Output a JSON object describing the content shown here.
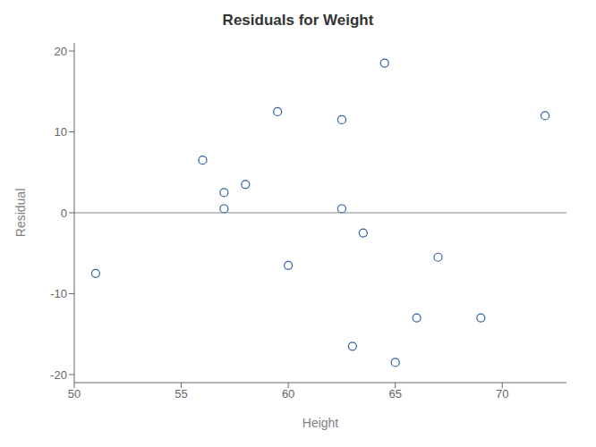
{
  "chart_data": {
    "type": "scatter",
    "title": "Residuals for Weight",
    "xlabel": "Height",
    "ylabel": "Residual",
    "x": [
      51,
      56,
      57,
      57,
      58,
      59.5,
      60,
      62.5,
      62.5,
      63,
      63.5,
      64.5,
      65,
      66,
      67,
      69,
      72
    ],
    "values": [
      -7.5,
      6.5,
      0.5,
      2.5,
      3.5,
      12.5,
      -6.5,
      11.5,
      0.5,
      -16.5,
      -2.5,
      18.5,
      -18.5,
      -13,
      -5.5,
      -13,
      12
    ],
    "color": "#3060a0",
    "marker": "hollow circle",
    "xlim": [
      50,
      73
    ],
    "ylim": [
      -21,
      21
    ],
    "xticks": [
      50,
      55,
      60,
      65,
      70
    ],
    "yticks": [
      -20,
      -10,
      0,
      10,
      20
    ],
    "grid": false,
    "hline": {
      "y": 0,
      "color": "#888888"
    }
  }
}
